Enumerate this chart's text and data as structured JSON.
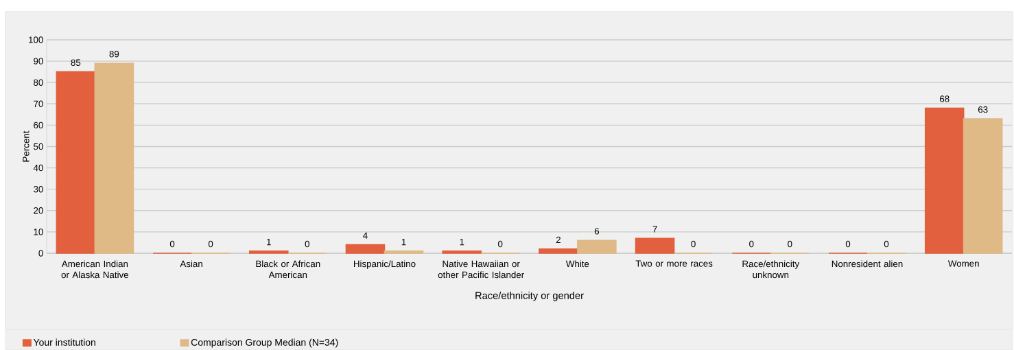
{
  "chart_data": {
    "type": "bar",
    "xlabel": "Race/ethnicity or gender",
    "ylabel": "Percent",
    "categories": [
      "American Indian or Alaska Native",
      "Asian",
      "Black or African American",
      "Hispanic/Latino",
      "Native Hawaiian or other Pacific Islander",
      "White",
      "Two or more races",
      "Race/ethnicity unknown",
      "Nonresident alien",
      "Women"
    ],
    "series": [
      {
        "name": "Your institution",
        "color": "#e2603d",
        "values": [
          85,
          0,
          1,
          4,
          1,
          2,
          7,
          0,
          0,
          68
        ]
      },
      {
        "name": "Comparison Group Median (N=34)",
        "color": "#dfb986",
        "values": [
          89,
          0,
          0,
          1,
          0,
          6,
          0,
          0,
          0,
          63
        ]
      }
    ],
    "ylim": [
      0,
      100
    ],
    "yticks": [
      0,
      10,
      20,
      30,
      40,
      50,
      60,
      70,
      80,
      90,
      100
    ],
    "grid": "y",
    "legend": "bottom",
    "data_labels": true
  }
}
